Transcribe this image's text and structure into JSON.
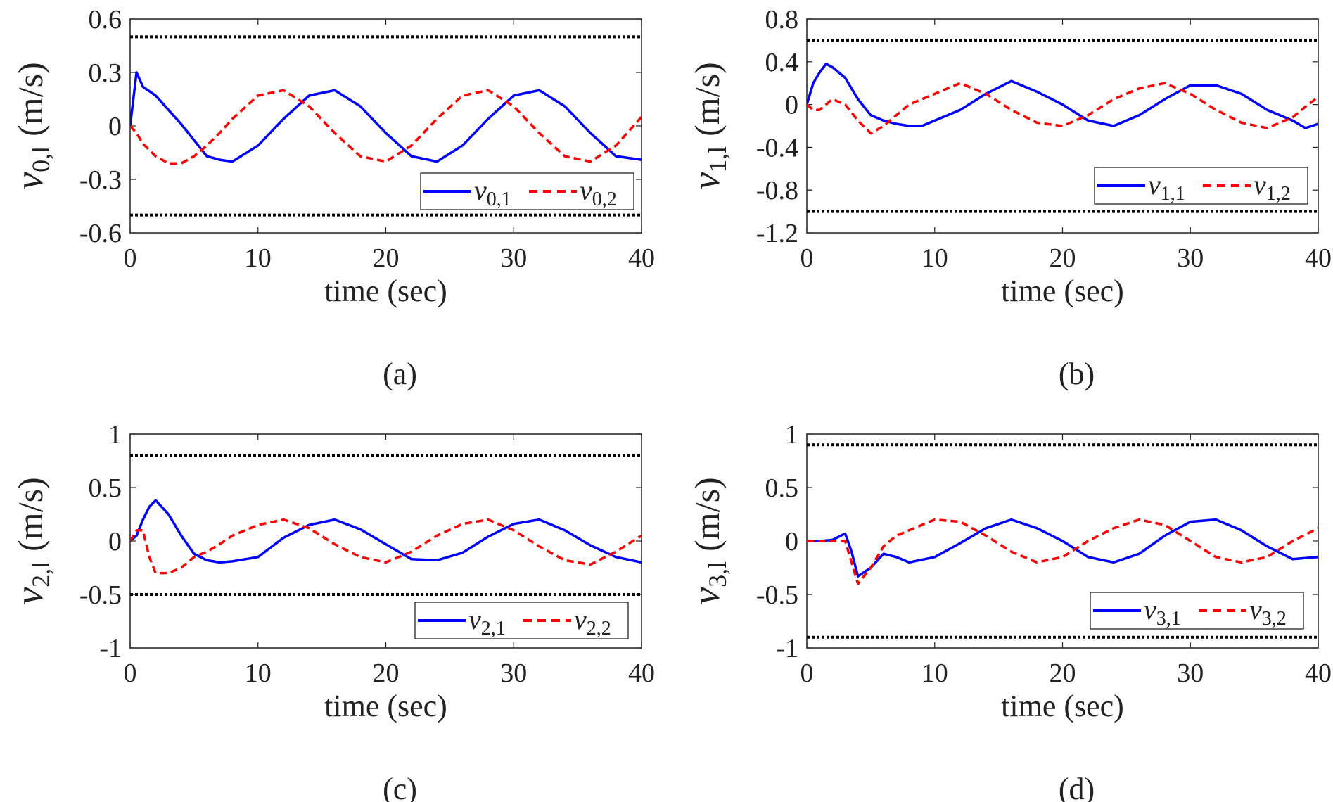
{
  "colors": {
    "series1": "#0000ff",
    "series2": "#ff0000",
    "bound": "#000000"
  },
  "chart_data": [
    {
      "type": "line",
      "caption": "(a)",
      "xlabel": "time (sec)",
      "ylabel": {
        "var": "v",
        "sub": "0,l",
        "unit": "(m/s)"
      },
      "xlim": [
        0,
        40
      ],
      "ylim": [
        -0.6,
        0.6
      ],
      "xticks": [
        "0",
        "10",
        "20",
        "30",
        "40"
      ],
      "xtick_values": [
        0,
        10,
        20,
        30,
        40
      ],
      "yticks": [
        "-0.6",
        "-0.3",
        "0",
        "0.3",
        "0.6"
      ],
      "ytick_values": [
        -0.6,
        -0.3,
        0,
        0.3,
        0.6
      ],
      "bounds": [
        0.5,
        -0.5
      ],
      "legend": "bottom-right",
      "x": [
        0,
        0.5,
        1,
        2,
        3,
        4,
        5,
        6,
        7,
        8,
        10,
        12,
        14,
        16,
        18,
        20,
        22,
        24,
        26,
        28,
        30,
        32,
        34,
        36,
        38,
        40
      ],
      "series": [
        {
          "name": "v",
          "sub": "0,1",
          "style": "solid",
          "values": [
            0,
            0.3,
            0.22,
            0.17,
            0.09,
            0.01,
            -0.08,
            -0.17,
            -0.19,
            -0.2,
            -0.11,
            0.04,
            0.17,
            0.2,
            0.11,
            -0.04,
            -0.17,
            -0.2,
            -0.11,
            0.04,
            0.17,
            0.2,
            0.11,
            -0.04,
            -0.17,
            -0.19
          ]
        },
        {
          "name": "v",
          "sub": "0,2",
          "style": "dashed",
          "values": [
            0,
            -0.04,
            -0.1,
            -0.17,
            -0.21,
            -0.21,
            -0.17,
            -0.11,
            -0.04,
            0.04,
            0.17,
            0.2,
            0.11,
            -0.04,
            -0.17,
            -0.2,
            -0.11,
            0.04,
            0.17,
            0.2,
            0.11,
            -0.04,
            -0.17,
            -0.2,
            -0.11,
            0.05
          ]
        }
      ]
    },
    {
      "type": "line",
      "caption": "(b)",
      "xlabel": "time (sec)",
      "ylabel": {
        "var": "v",
        "sub": "1,l",
        "unit": "(m/s)"
      },
      "xlim": [
        0,
        40
      ],
      "ylim": [
        -1.2,
        0.8
      ],
      "xticks": [
        "0",
        "10",
        "20",
        "30",
        "40"
      ],
      "xtick_values": [
        0,
        10,
        20,
        30,
        40
      ],
      "yticks": [
        "-1.2",
        "-0.8",
        "-0.4",
        "0",
        "0.4",
        "0.8"
      ],
      "ytick_values": [
        -1.2,
        -0.8,
        -0.4,
        0,
        0.4,
        0.8
      ],
      "bounds": [
        0.6,
        -1.0
      ],
      "legend": "right",
      "x": [
        0,
        0.5,
        1,
        1.5,
        2,
        3,
        4,
        5,
        6,
        7,
        8,
        9,
        10,
        12,
        14,
        16,
        18,
        20,
        22,
        24,
        26,
        28,
        30,
        32,
        34,
        36,
        38,
        39,
        40
      ],
      "series": [
        {
          "name": "v",
          "sub": "1,1",
          "style": "solid",
          "values": [
            0,
            0.2,
            0.3,
            0.38,
            0.35,
            0.25,
            0.05,
            -0.1,
            -0.15,
            -0.18,
            -0.2,
            -0.2,
            -0.15,
            -0.05,
            0.1,
            0.22,
            0.12,
            0,
            -0.15,
            -0.2,
            -0.1,
            0.05,
            0.18,
            0.18,
            0.1,
            -0.05,
            -0.15,
            -0.22,
            -0.18
          ]
        },
        {
          "name": "v",
          "sub": "1,2",
          "style": "dashed",
          "values": [
            0,
            -0.05,
            -0.05,
            0,
            0.05,
            0,
            -0.15,
            -0.27,
            -0.2,
            -0.1,
            0,
            0.05,
            0.1,
            0.2,
            0.1,
            -0.05,
            -0.17,
            -0.2,
            -0.1,
            0.05,
            0.15,
            0.2,
            0.1,
            -0.05,
            -0.17,
            -0.22,
            -0.12,
            -0.02,
            0.07
          ]
        }
      ]
    },
    {
      "type": "line",
      "caption": "(c)",
      "xlabel": "time (sec)",
      "ylabel": {
        "var": "v",
        "sub": "2,l",
        "unit": "(m/s)"
      },
      "xlim": [
        0,
        40
      ],
      "ylim": [
        -1,
        1
      ],
      "xticks": [
        "0",
        "10",
        "20",
        "30",
        "40"
      ],
      "xtick_values": [
        0,
        10,
        20,
        30,
        40
      ],
      "yticks": [
        "-1",
        "-0.5",
        "0",
        "0.5",
        "1"
      ],
      "ytick_values": [
        -1,
        -0.5,
        0,
        0.5,
        1
      ],
      "bounds": [
        0.8,
        -0.5
      ],
      "legend": "bottom-right",
      "x": [
        0,
        0.5,
        1,
        1.5,
        2,
        3,
        4,
        5,
        6,
        7,
        8,
        10,
        12,
        14,
        16,
        18,
        20,
        22,
        24,
        26,
        28,
        30,
        32,
        34,
        36,
        38,
        40
      ],
      "series": [
        {
          "name": "v",
          "sub": "2,1",
          "style": "solid",
          "values": [
            0,
            0.05,
            0.2,
            0.32,
            0.38,
            0.25,
            0.05,
            -0.12,
            -0.18,
            -0.2,
            -0.19,
            -0.15,
            0.03,
            0.15,
            0.2,
            0.11,
            -0.03,
            -0.17,
            -0.18,
            -0.11,
            0.04,
            0.16,
            0.2,
            0.1,
            -0.04,
            -0.15,
            -0.2
          ]
        },
        {
          "name": "v",
          "sub": "2,2",
          "style": "dashed",
          "values": [
            0,
            0.1,
            0.1,
            -0.15,
            -0.3,
            -0.3,
            -0.25,
            -0.15,
            -0.1,
            -0.03,
            0.05,
            0.15,
            0.2,
            0.12,
            -0.03,
            -0.15,
            -0.2,
            -0.1,
            0.05,
            0.16,
            0.2,
            0.1,
            -0.05,
            -0.18,
            -0.22,
            -0.1,
            0.05
          ]
        }
      ]
    },
    {
      "type": "line",
      "caption": "(d)",
      "xlabel": "time (sec)",
      "ylabel": {
        "var": "v",
        "sub": "3,l",
        "unit": "(m/s)"
      },
      "xlim": [
        0,
        40
      ],
      "ylim": [
        -1,
        1
      ],
      "xticks": [
        "0",
        "10",
        "20",
        "30",
        "40"
      ],
      "xtick_values": [
        0,
        10,
        20,
        30,
        40
      ],
      "yticks": [
        "-1",
        "-0.5",
        "0",
        "0.5",
        "1"
      ],
      "ytick_values": [
        -1,
        -0.5,
        0,
        0.5,
        1
      ],
      "bounds": [
        0.9,
        -0.9
      ],
      "legend": "bottom-right",
      "x": [
        0,
        1,
        2,
        3,
        3.5,
        4,
        5,
        6,
        7,
        8,
        10,
        12,
        14,
        16,
        18,
        20,
        22,
        24,
        26,
        28,
        30,
        32,
        34,
        36,
        38,
        40
      ],
      "series": [
        {
          "name": "v",
          "sub": "3,1",
          "style": "solid",
          "values": [
            0,
            0,
            0.01,
            0.07,
            -0.1,
            -0.33,
            -0.25,
            -0.12,
            -0.15,
            -0.2,
            -0.15,
            -0.02,
            0.12,
            0.2,
            0.12,
            0,
            -0.15,
            -0.2,
            -0.12,
            0.05,
            0.18,
            0.2,
            0.1,
            -0.05,
            -0.17,
            -0.15
          ]
        },
        {
          "name": "v",
          "sub": "3,2",
          "style": "dashed",
          "values": [
            0,
            0,
            0,
            0,
            -0.2,
            -0.4,
            -0.25,
            -0.05,
            0.05,
            0.1,
            0.2,
            0.18,
            0.05,
            -0.1,
            -0.2,
            -0.15,
            0,
            0.12,
            0.2,
            0.15,
            0,
            -0.15,
            -0.2,
            -0.15,
            0,
            0.12
          ]
        }
      ]
    }
  ]
}
